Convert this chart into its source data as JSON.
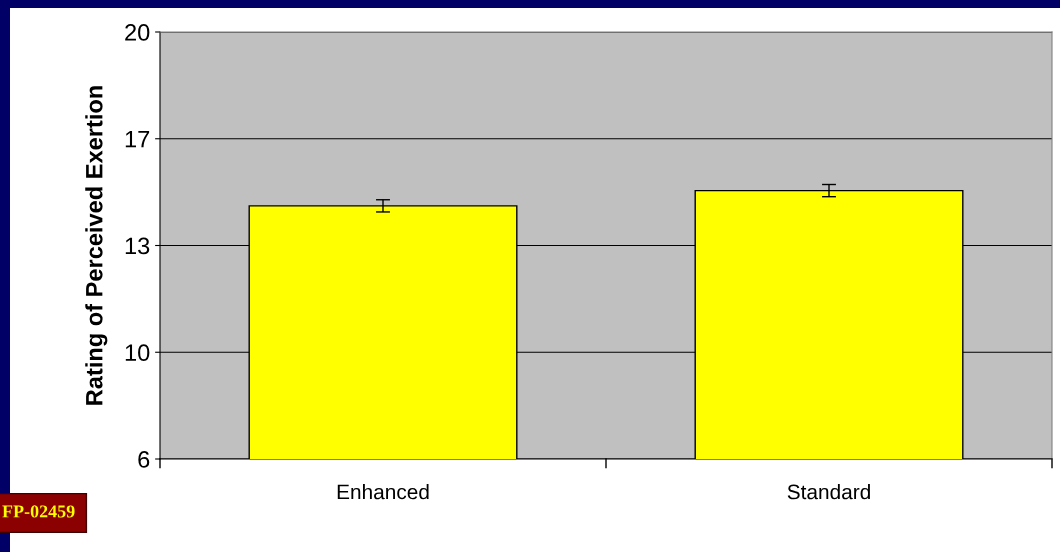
{
  "chart_data": {
    "type": "bar",
    "ylabel": "Rating of Perceived Exertion",
    "categories": [
      "Enhanced",
      "Standard"
    ],
    "values": [
      14.3,
      14.8
    ],
    "errors": [
      0.2,
      0.2
    ],
    "color": "#ffff00",
    "ylim": [
      6,
      20
    ],
    "yticks": [
      {
        "value": 6,
        "label": "6"
      },
      {
        "value": 9.5,
        "label": "10"
      },
      {
        "value": 13,
        "label": "13"
      },
      {
        "value": 16.5,
        "label": "17"
      },
      {
        "value": 20,
        "label": "20"
      }
    ],
    "grid": "y",
    "annotations": [
      "FP-02459"
    ]
  }
}
